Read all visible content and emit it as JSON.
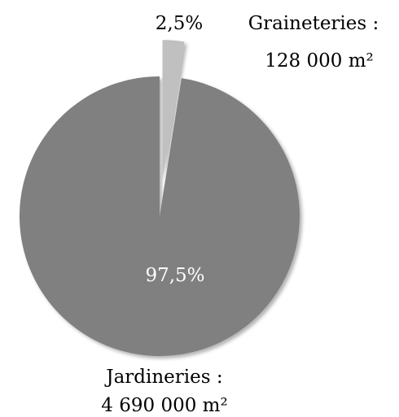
{
  "chart_data": {
    "type": "pie",
    "categories": [
      "Graineteries :",
      "Jardineries :"
    ],
    "category_notes": [
      "128 000 m²",
      "4 690 000 m²"
    ],
    "values": [
      2.5,
      97.5
    ],
    "value_labels": [
      "2,5%",
      "97,5%"
    ],
    "colors": [
      "#c0c0c0",
      "#808080"
    ],
    "label_colors": [
      "#000000",
      "#ffffff"
    ]
  }
}
